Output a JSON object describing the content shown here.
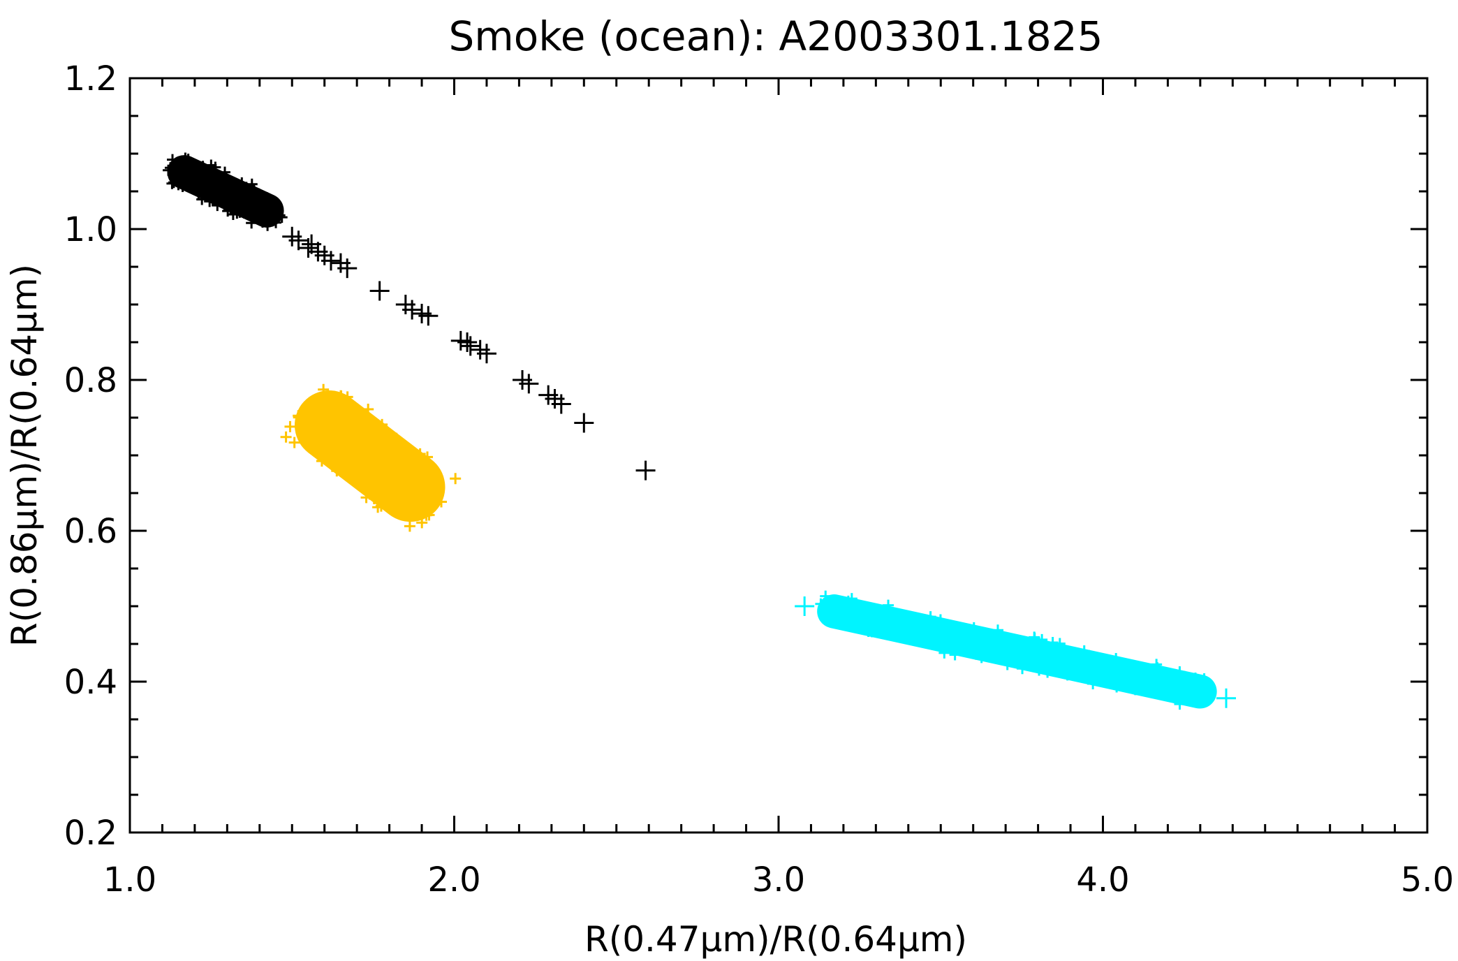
{
  "chart_data": {
    "type": "scatter",
    "title": "Smoke (ocean): A2003301.1825",
    "xlabel": "R(0.47μm)/R(0.64μm)",
    "ylabel": "R(0.86μm)/R(0.64μm)",
    "xlim": [
      1.0,
      5.0
    ],
    "ylim": [
      0.2,
      1.2
    ],
    "x_ticks": [
      "1.0",
      "2.0",
      "3.0",
      "4.0",
      "5.0"
    ],
    "y_ticks": [
      "0.2",
      "0.4",
      "0.6",
      "0.8",
      "1.0",
      "1.2"
    ],
    "x_minor_step": 0.1,
    "y_minor_step": 0.05,
    "grid": false,
    "legend": "none",
    "series": [
      {
        "color": "#000000",
        "marker": "plus",
        "dense_band": {
          "start": [
            1.12,
            1.085
          ],
          "end": [
            1.47,
            1.015
          ],
          "width": 0.045
        },
        "points": [
          [
            1.5,
            0.99
          ],
          [
            1.52,
            0.985
          ],
          [
            1.55,
            0.975
          ],
          [
            1.56,
            0.98
          ],
          [
            1.58,
            0.97
          ],
          [
            1.6,
            0.965
          ],
          [
            1.62,
            0.958
          ],
          [
            1.65,
            0.955
          ],
          [
            1.67,
            0.948
          ],
          [
            1.77,
            0.918
          ],
          [
            1.85,
            0.9
          ],
          [
            1.87,
            0.893
          ],
          [
            1.9,
            0.888
          ],
          [
            1.92,
            0.885
          ],
          [
            2.02,
            0.852
          ],
          [
            2.04,
            0.85
          ],
          [
            2.05,
            0.845
          ],
          [
            2.08,
            0.84
          ],
          [
            2.1,
            0.835
          ],
          [
            2.21,
            0.8
          ],
          [
            2.23,
            0.795
          ],
          [
            2.29,
            0.78
          ],
          [
            2.31,
            0.775
          ],
          [
            2.33,
            0.768
          ],
          [
            2.4,
            0.743
          ],
          [
            2.59,
            0.68
          ]
        ]
      },
      {
        "color": "#ffc400",
        "marker": "plus",
        "dense_band": {
          "start": [
            1.53,
            0.768
          ],
          "end": [
            1.95,
            0.63
          ],
          "width": 0.092
        }
      },
      {
        "color": "#00f4ff",
        "marker": "plus",
        "dense_band": {
          "start": [
            3.12,
            0.498
          ],
          "end": [
            4.35,
            0.382
          ],
          "width": 0.045
        },
        "points": [
          [
            3.08,
            0.5
          ],
          [
            4.38,
            0.378
          ]
        ]
      }
    ]
  }
}
